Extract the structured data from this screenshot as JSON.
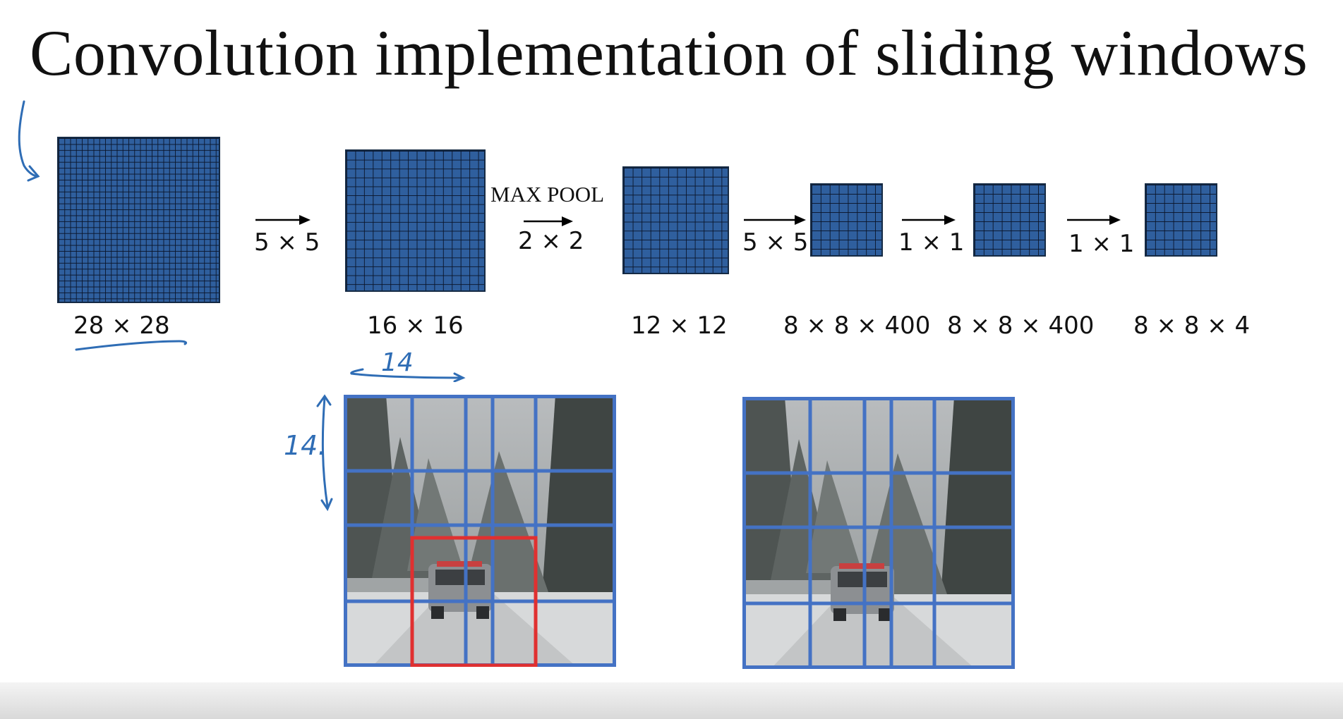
{
  "title": "Convolution implementation of sliding windows",
  "pipeline": {
    "grids": [
      {
        "dim": "28 × 28"
      },
      {
        "dim": "16 × 16"
      },
      {
        "dim": "12 × 12"
      },
      {
        "dim": "8 × 8 × 400"
      },
      {
        "dim": "8 × 8 × 400"
      },
      {
        "dim": "8 × 8 × 4"
      }
    ],
    "ops": [
      "5 × 5",
      "2 × 2",
      "5 × 5",
      "1 × 1",
      "1 × 1"
    ],
    "maxpool_label": "MAX POOL"
  },
  "annotations": {
    "width_note": "14",
    "height_note": "14."
  },
  "colors": {
    "grid_fill": "#2f5f9e",
    "grid_border": "#152a44",
    "window_grid": "#4472c4",
    "highlight_window": "#e03030",
    "handwriting": "#2f6db5"
  }
}
